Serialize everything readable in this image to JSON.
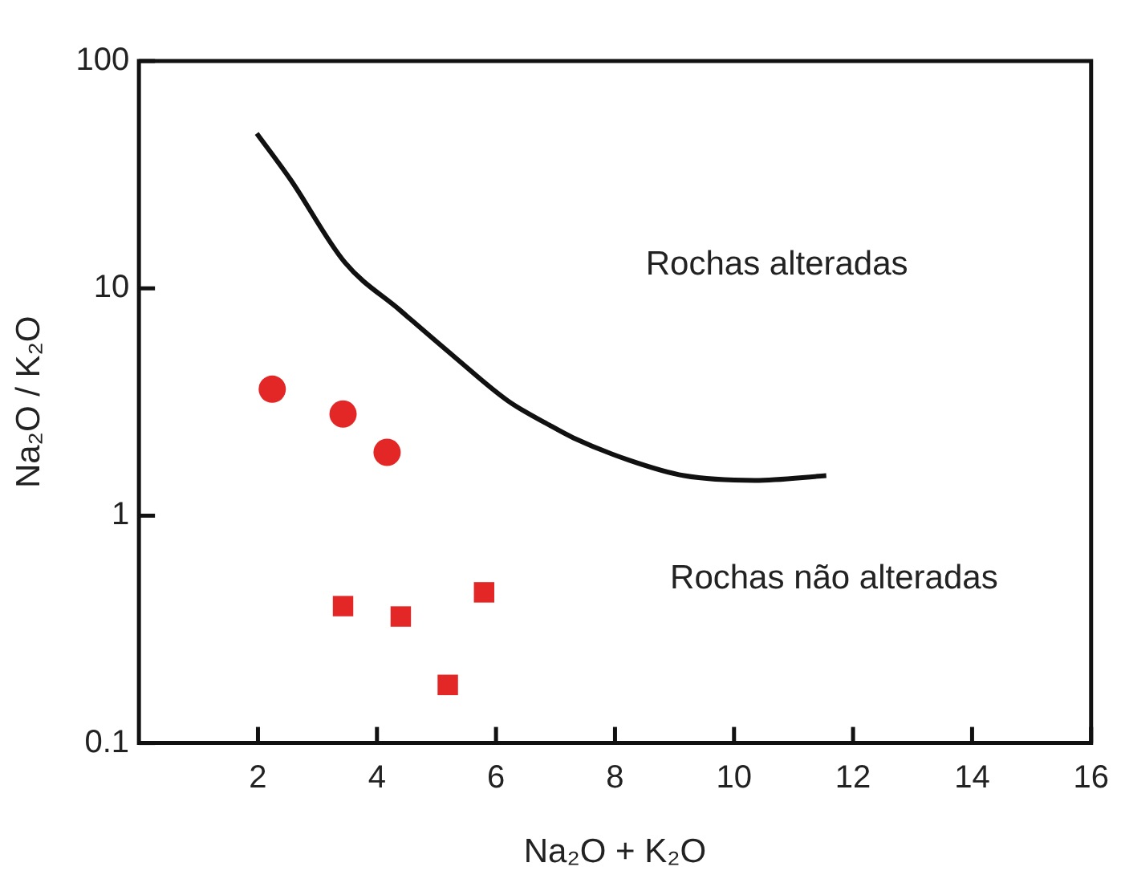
{
  "chart_data": {
    "type": "scatter",
    "xlabel": "Na₂O + K₂O",
    "ylabel": "Na₂O / K₂O",
    "xlim": [
      0,
      16
    ],
    "xticks": [
      2,
      4,
      6,
      8,
      10,
      12,
      14,
      16
    ],
    "ylim": [
      0.1,
      100
    ],
    "yticks": [
      0.1,
      1,
      10,
      100
    ],
    "log": "y",
    "grid": false,
    "legend": false,
    "series": [
      {
        "marker": "circle",
        "color": "#e32626",
        "x": [
          2.24,
          3.43,
          4.17
        ],
        "values": [
          3.6,
          2.8,
          1.9
        ]
      },
      {
        "marker": "square",
        "color": "#e32626",
        "x": [
          3.43,
          4.4,
          5.8,
          5.19
        ],
        "values": [
          0.4,
          0.36,
          0.46,
          0.18
        ]
      },
      {
        "type": "line",
        "marker": "none",
        "line_style": "solid",
        "color": "#111111",
        "x": [
          1.98,
          2.55,
          3.46,
          4.39,
          5.3,
          6.2,
          6.9,
          7.3,
          8.25,
          9.16,
          10.35,
          11.55
        ],
        "values": [
          48,
          30,
          13,
          8,
          5,
          3.2,
          2.5,
          2.2,
          1.75,
          1.5,
          1.43,
          1.5
        ]
      }
    ],
    "annotations": [
      "Rochas alteradas",
      "Rochas não alteradas"
    ]
  }
}
